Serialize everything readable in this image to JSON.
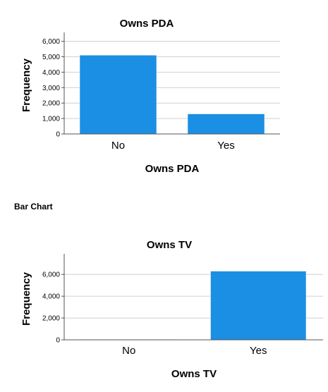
{
  "section_label": "Bar Chart",
  "chart_data": [
    {
      "type": "bar",
      "title": "Owns PDA",
      "xlabel": "Owns PDA",
      "ylabel": "Frequency",
      "categories": [
        "No",
        "Yes"
      ],
      "values": [
        5100,
        1300
      ],
      "ylim": [
        0,
        6300
      ],
      "yticks": [
        0,
        1000,
        2000,
        3000,
        4000,
        5000,
        6000
      ],
      "ytick_labels": [
        "0",
        "1,000",
        "2,000",
        "3,000",
        "4,000",
        "5,000",
        "6,000"
      ],
      "grid": true,
      "bar_color": "#1a8fe3"
    },
    {
      "type": "bar",
      "title": "Owns TV",
      "xlabel": "Owns TV",
      "ylabel": "Frequency",
      "categories": [
        "No",
        "Yes"
      ],
      "values": [
        40,
        6300
      ],
      "ylim": [
        0,
        7500
      ],
      "yticks": [
        0,
        2000,
        4000,
        6000
      ],
      "ytick_labels": [
        "0",
        "2,000",
        "4,000",
        "6,000"
      ],
      "grid": true,
      "bar_color": "#1a8fe3"
    }
  ]
}
